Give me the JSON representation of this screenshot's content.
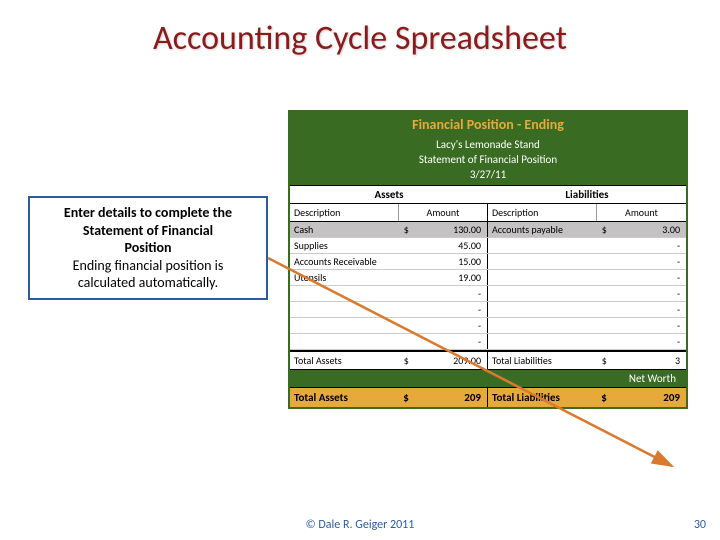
{
  "title": "Accounting Cycle Spreadsheet",
  "callout": {
    "line1a": "Enter details to complete the",
    "line1b": "Statement of Financial",
    "line1c": "Position",
    "line2a": "Ending financial position is",
    "line2b": "calculated automatically."
  },
  "sheet": {
    "header": "Financial Position - Ending",
    "sub1": "Lacy's Lemonade Stand",
    "sub2": "Statement of Financial Position",
    "date": "3/27/11",
    "section_left": "Assets",
    "section_right": "Liabilities",
    "col_desc": "Description",
    "col_amt": "Amount",
    "rows": [
      {
        "d1": "Cash",
        "a1": "130.00",
        "d2": "Accounts payable",
        "a2": "3.00",
        "hl": true,
        "cur": true
      },
      {
        "d1": "Supplies",
        "a1": "45.00",
        "d2": "",
        "a2": "-",
        "hl": false
      },
      {
        "d1": "Accounts Receivable",
        "a1": "15.00",
        "d2": "",
        "a2": "-",
        "hl": false
      },
      {
        "d1": "Utensils",
        "a1": "19.00",
        "d2": "",
        "a2": "-",
        "hl": false
      },
      {
        "d1": "",
        "a1": "-",
        "d2": "",
        "a2": "-",
        "hl": false
      },
      {
        "d1": "",
        "a1": "-",
        "d2": "",
        "a2": "-",
        "hl": false
      },
      {
        "d1": "",
        "a1": "-",
        "d2": "",
        "a2": "-",
        "hl": false
      },
      {
        "d1": "",
        "a1": "-",
        "d2": "",
        "a2": "-",
        "hl": false
      }
    ],
    "total_assets_label": "Total Assets",
    "total_assets_value": "209.00",
    "total_liab_label": "Total Liabilities",
    "total_liab_value": "3",
    "networth_label": "Net Worth",
    "final_assets_label": "Total Assets",
    "final_assets_value": "209",
    "final_liab_label": "Total Liabilities",
    "final_liab_value": "209"
  },
  "copyright": "© Dale R. Geiger 2011",
  "page": "30",
  "colors": {
    "title": "#8b1a1a",
    "callout_border": "#2a5ca0",
    "sheet_green": "#3a6b22",
    "sheet_gold": "#e6a93a",
    "highlight_row": "#c4c2c2",
    "arrow": "#d97a2e"
  }
}
